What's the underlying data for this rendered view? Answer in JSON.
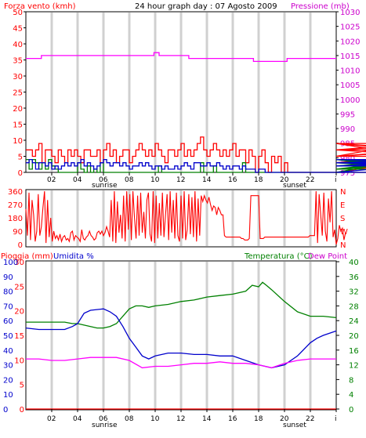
{
  "chart_data": [
    {
      "type": "line",
      "title": "24 hour graph day : 07 Agosto 2009",
      "left_axis_label": "Forza vento (kmh)",
      "right_axis_label": "Pressione (mb)",
      "y_left_ticks": [
        "0",
        "5",
        "10",
        "15",
        "20",
        "25",
        "30",
        "35",
        "40",
        "45",
        "50"
      ],
      "y_left_range": [
        0,
        50
      ],
      "y_right_ticks": [
        "975",
        "980",
        "985",
        "990",
        "995",
        "1000",
        "1005",
        "1010",
        "1015",
        "1020",
        "1025",
        "1030"
      ],
      "y_right_range": [
        975,
        1030
      ],
      "x_range_hours": [
        0,
        24
      ],
      "x_ticks": [
        "02",
        "04",
        "06",
        "08",
        "10",
        "12",
        "14",
        "16",
        "18",
        "20",
        "22",
        "i"
      ],
      "sunrise_label": "sunrise",
      "sunset_label": "sunset",
      "series": [
        {
          "color": "#ff00ff",
          "axis": "right",
          "x": [
            0,
            1.2,
            1.2,
            4,
            5,
            6,
            7,
            9,
            9.9,
            9.9,
            10.3,
            10.3,
            11.5,
            11.5,
            12.6,
            12.6,
            14,
            15,
            16,
            17,
            17.6,
            17.6,
            17.9,
            17.9,
            19.8,
            19.8,
            20.2,
            20.2,
            21,
            22,
            23,
            24.0
          ],
          "y": [
            1014,
            1014,
            1015,
            1015,
            1015,
            1015,
            1015,
            1015,
            1015,
            1016,
            1016,
            1015,
            1015,
            1015,
            1015,
            1014,
            1014,
            1014,
            1014,
            1014,
            1014,
            1013,
            1013,
            1013,
            1013,
            1013,
            1013,
            1014,
            1014,
            1014,
            1014,
            1014
          ]
        },
        {
          "color": "#ff0000",
          "axis": "left",
          "x_start": 0,
          "x_step": 0.25,
          "values": [
            7,
            7,
            5,
            7,
            9,
            3,
            7,
            7,
            5,
            3,
            7,
            5,
            3,
            7,
            5,
            7,
            5,
            3,
            7,
            7,
            5,
            5,
            7,
            3,
            7,
            9,
            5,
            7,
            3,
            5,
            7,
            7,
            3,
            5,
            7,
            9,
            7,
            5,
            7,
            5,
            9,
            7,
            5,
            3,
            7,
            7,
            5,
            7,
            9,
            5,
            7,
            5,
            7,
            9,
            11,
            7,
            5,
            7,
            9,
            7,
            5,
            7,
            5,
            7,
            9,
            5,
            7,
            7,
            3,
            7,
            5,
            0,
            5,
            7,
            3,
            0,
            5,
            3,
            5,
            0,
            3,
            0,
            0,
            0,
            0,
            0,
            0,
            0,
            0,
            0,
            0,
            0,
            0,
            0,
            0,
            0,
            0,
            0,
            0,
            0,
            0,
            0,
            0,
            0,
            0,
            0,
            0,
            0,
            0,
            0,
            0,
            0,
            0,
            0,
            0,
            0,
            3,
            5,
            9,
            7,
            7,
            9,
            5,
            7,
            9,
            9,
            7,
            5,
            7,
            9
          ]
        },
        {
          "color": "#008000",
          "axis": "left",
          "x_start": 0,
          "x_step": 0.25,
          "values": [
            4,
            1,
            4,
            3,
            1,
            3,
            1,
            4,
            2,
            1,
            0,
            0,
            0,
            0,
            0,
            0,
            3,
            1,
            0,
            2,
            0,
            1,
            0,
            3,
            0,
            0,
            0,
            0,
            0,
            0,
            0,
            0,
            0,
            0,
            0,
            0,
            0,
            0,
            0,
            0,
            0,
            2,
            0,
            0,
            0,
            0,
            0,
            0,
            0,
            0,
            0,
            0,
            0,
            0,
            3,
            0,
            0,
            0,
            2,
            0,
            0,
            0,
            0,
            0,
            0,
            0,
            0,
            3,
            0,
            0,
            0,
            0,
            0,
            0,
            0,
            0,
            0,
            0,
            0,
            0,
            0,
            0,
            0,
            0,
            0,
            0,
            0,
            0,
            0,
            0,
            0,
            0,
            0,
            0,
            0,
            0,
            0,
            0,
            0,
            0,
            0,
            0,
            0,
            0,
            0,
            0,
            0,
            0,
            0,
            0,
            0,
            0,
            0,
            0,
            0,
            0,
            0,
            0,
            4,
            1,
            4,
            2,
            4,
            1,
            3,
            1,
            4,
            2
          ]
        },
        {
          "color": "#0000cc",
          "axis": "left",
          "x_start": 0,
          "x_step": 0.25,
          "values": [
            3,
            4,
            3,
            1,
            3,
            3,
            2,
            3,
            1,
            2,
            1,
            2,
            3,
            2,
            3,
            2,
            3,
            4,
            2,
            3,
            2,
            1,
            2,
            3,
            4,
            3,
            2,
            3,
            3,
            2,
            3,
            2,
            1,
            2,
            2,
            3,
            2,
            3,
            2,
            1,
            2,
            2,
            1,
            2,
            1,
            1,
            2,
            1,
            2,
            3,
            2,
            1,
            3,
            3,
            2,
            2,
            3,
            2,
            2,
            3,
            2,
            1,
            2,
            1,
            2,
            2,
            1,
            2,
            1,
            1,
            1,
            0,
            1,
            1,
            0,
            0,
            0,
            0,
            0,
            0,
            0,
            0,
            0,
            0,
            0,
            0,
            0,
            0,
            0,
            0,
            0,
            0,
            0,
            0,
            0,
            0,
            0,
            0,
            0,
            0,
            0,
            0,
            0,
            0,
            0,
            0,
            0,
            0,
            0,
            0,
            0,
            0,
            0,
            0,
            0,
            0,
            0,
            0,
            2,
            3,
            3,
            2,
            3,
            4,
            3,
            2,
            3,
            3
          ]
        }
      ]
    },
    {
      "type": "line",
      "y_left_ticks": [
        "0",
        "90",
        "180",
        "270",
        "360"
      ],
      "y_range": [
        0,
        360
      ],
      "y_right_ticks": [
        "N",
        "E",
        "S",
        "W",
        "N"
      ],
      "series": [
        {
          "color": "#ff0000",
          "x_start": 0,
          "x_step": 0.12,
          "values": [
            240,
            60,
            350,
            30,
            300,
            200,
            20,
            90,
            340,
            60,
            120,
            250,
            360,
            10,
            300,
            50,
            180,
            20,
            90,
            40,
            60,
            30,
            70,
            20,
            50,
            60,
            30,
            40,
            20,
            80,
            90,
            30,
            60,
            50,
            40,
            20,
            100,
            40,
            30,
            50,
            60,
            90,
            60,
            50,
            30,
            40,
            80,
            90,
            70,
            90,
            60,
            80,
            120,
            90,
            50,
            300,
            20,
            360,
            10,
            290,
            80,
            200,
            40,
            330,
            20,
            360,
            100,
            340,
            30,
            360,
            180,
            40,
            330,
            60,
            350,
            80,
            220,
            40,
            300,
            350,
            70,
            20,
            360,
            10,
            330,
            40,
            280,
            60,
            350,
            50,
            200,
            340,
            30,
            360,
            80,
            300,
            40,
            350,
            60,
            20,
            330,
            40,
            360,
            30,
            100,
            340,
            70,
            320,
            50,
            360,
            20,
            310,
            60,
            330,
            290,
            330,
            300,
            280,
            320,
            270,
            230,
            260,
            250,
            200,
            250,
            230,
            200,
            200,
            60,
            50,
            50,
            50,
            50,
            50,
            50,
            50,
            50,
            50,
            50,
            40,
            40,
            30,
            30,
            30,
            40,
            330,
            330,
            330,
            330,
            330,
            330,
            40,
            40,
            40,
            50,
            50,
            50,
            50,
            50,
            50,
            50,
            50,
            50,
            50,
            50,
            50,
            50,
            50,
            50,
            50,
            50,
            50,
            50,
            50,
            50,
            50,
            50,
            50,
            50,
            50,
            50,
            50,
            50,
            60,
            60,
            60,
            60,
            360,
            10,
            340,
            200,
            60,
            350,
            90,
            20,
            310,
            150,
            360,
            50,
            100,
            0,
            40,
            130,
            90,
            110,
            30,
            80
          ]
        }
      ]
    },
    {
      "type": "line",
      "left_axis_label": "Pioggia (mm)",
      "left_axis_label_2": "Umidita %",
      "right_axis_label": "Temperatura (°C)",
      "right_axis_label_2": "Dew Point",
      "y_left_ticks": [
        "0",
        "5",
        "10",
        "15",
        "20",
        "25",
        "30"
      ],
      "y_left_range": [
        0,
        30
      ],
      "y_left_ticks_2": [
        "0",
        "10",
        "20",
        "30",
        "40",
        "50",
        "60",
        "70",
        "80",
        "90",
        "100"
      ],
      "y_left_range_2": [
        0,
        100
      ],
      "y_right_ticks": [
        "0",
        "4",
        "8",
        "12",
        "16",
        "20",
        "24",
        "28",
        "32",
        "36",
        "40"
      ],
      "y_right_range": [
        0,
        40
      ],
      "x_range_hours": [
        0,
        24
      ],
      "x_ticks": [
        "02",
        "04",
        "06",
        "08",
        "10",
        "12",
        "14",
        "16",
        "18",
        "20",
        "22",
        "i"
      ],
      "sunrise_label": "sunrise",
      "sunset_label": "sunset",
      "series": [
        {
          "color": "#ff0000",
          "axis": "left",
          "x": [
            0,
            24.0
          ],
          "y": [
            0,
            0
          ]
        },
        {
          "color": "#008000",
          "axis": "right",
          "x": [
            0,
            1,
            2,
            3,
            3.6,
            4,
            5,
            5.5,
            6,
            6.5,
            7,
            7.5,
            8,
            8.5,
            9,
            9.5,
            10,
            11,
            12,
            13,
            14,
            15,
            16,
            17,
            17.5,
            18,
            18.3,
            18.6,
            19,
            20,
            21,
            22,
            23,
            24.0
          ],
          "y": [
            23.6,
            23.6,
            23.6,
            23.6,
            23.2,
            23.2,
            22.4,
            22,
            22,
            22.4,
            23.2,
            25.2,
            27.2,
            28,
            28,
            27.6,
            28,
            28.4,
            29.2,
            29.6,
            30.4,
            30.8,
            31.2,
            32,
            33.6,
            33.2,
            34.4,
            33.6,
            32.4,
            29.2,
            26.4,
            25.2,
            25.2,
            24.8
          ]
        },
        {
          "color": "#0000cc",
          "axis": "left2",
          "x": [
            0,
            1,
            2,
            3,
            3.6,
            4,
            4.5,
            5,
            6,
            6.5,
            7,
            7.5,
            8,
            8.5,
            9,
            9.5,
            10,
            11,
            12,
            13,
            14,
            15,
            16,
            17,
            18,
            19,
            20,
            21,
            22,
            22.5,
            23,
            24.0
          ],
          "y": [
            55,
            54,
            54,
            54,
            56,
            58,
            65,
            67,
            68,
            66,
            63,
            56,
            48,
            42,
            36,
            34,
            36,
            38,
            38,
            37,
            37,
            36,
            36,
            33,
            30,
            28,
            30,
            36,
            45,
            48,
            50,
            53
          ]
        },
        {
          "color": "#ff00ff",
          "axis": "right",
          "x": [
            0,
            1,
            2,
            3,
            4,
            5,
            6,
            7,
            8,
            9,
            10,
            11,
            12,
            13,
            14,
            15,
            16,
            17,
            18,
            19,
            20,
            21,
            22,
            23,
            24.0
          ],
          "y": [
            13.6,
            13.6,
            13.2,
            13.2,
            13.6,
            14,
            14,
            14,
            13.2,
            11.2,
            11.6,
            11.6,
            12,
            12.4,
            12.4,
            12.8,
            12.4,
            12.4,
            12,
            11.2,
            12.4,
            13.2,
            13.6,
            13.6,
            13.6
          ]
        }
      ]
    }
  ]
}
